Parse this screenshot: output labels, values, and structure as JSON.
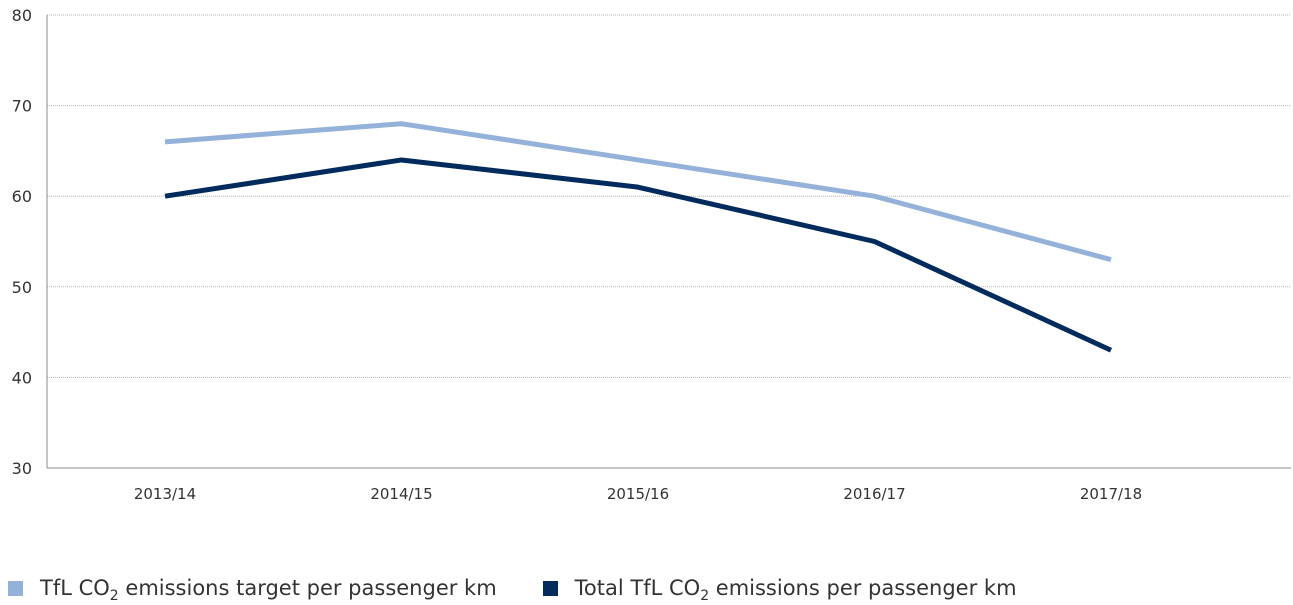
{
  "chart_data": {
    "type": "line",
    "categories": [
      "2013/14",
      "2014/15",
      "2015/16",
      "2016/17",
      "2017/18"
    ],
    "ylim": [
      30,
      80
    ],
    "yticks": [
      30,
      40,
      50,
      60,
      70,
      80
    ],
    "grid": true,
    "legend_position": "bottom-left",
    "series": [
      {
        "name_parts": [
          "TfL CO",
          "2",
          " emissions target per passenger km"
        ],
        "color": "#94b2d9",
        "values": [
          66,
          68,
          64,
          60,
          53
        ]
      },
      {
        "name_parts": [
          "Total TfL CO",
          "2",
          " emissions per passenger km"
        ],
        "color": "#002b5c",
        "values": [
          60,
          64,
          61,
          55,
          43
        ]
      }
    ]
  }
}
